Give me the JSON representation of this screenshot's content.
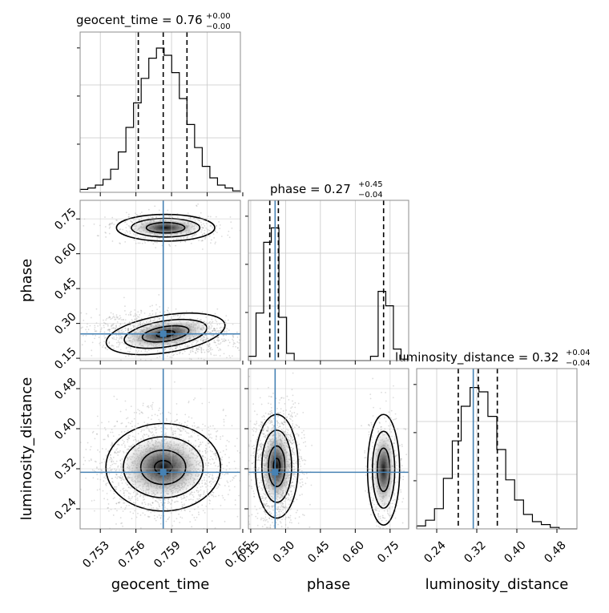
{
  "chart_data": {
    "type": "corner",
    "parameters": [
      {
        "name": "geocent_time",
        "range": [
          0.7513,
          0.7648
        ],
        "ticks": [
          "0.753",
          "0.756",
          "0.759",
          "0.762",
          "0.765"
        ],
        "tick_values": [
          0.753,
          0.756,
          0.759,
          0.762,
          0.765
        ],
        "truth": 0.7583,
        "quantiles": [
          0.7562,
          0.7583,
          0.7603
        ]
      },
      {
        "name": "phase",
        "range": [
          0.14,
          0.83
        ],
        "ticks": [
          "0.15",
          "0.30",
          "0.45",
          "0.60",
          "0.75"
        ],
        "tick_values": [
          0.15,
          0.3,
          0.45,
          0.6,
          0.75
        ],
        "truth": 0.255,
        "quantiles": [
          0.232,
          0.269,
          0.722
        ]
      },
      {
        "name": "luminosity_distance",
        "range": [
          0.2,
          0.52
        ],
        "ticks": [
          "0.24",
          "0.32",
          "0.40",
          "0.48"
        ],
        "tick_values": [
          0.24,
          0.32,
          0.4,
          0.48
        ],
        "truth": 0.313,
        "quantiles": [
          0.283,
          0.323,
          0.361
        ]
      }
    ],
    "titles": [
      {
        "main": "geocent_time = 0.76",
        "sup": "+0.00",
        "sub": "−0.00"
      },
      {
        "main": "phase = 0.27",
        "sup": "+0.45",
        "sub": "−0.04"
      },
      {
        "main": "luminosity_distance = 0.32",
        "sup": "+0.04",
        "sub": "−0.04"
      }
    ],
    "hist_heights": {
      "geocent_time": [
        0.02,
        0.03,
        0.05,
        0.09,
        0.16,
        0.28,
        0.45,
        0.62,
        0.79,
        0.93,
        1.0,
        0.95,
        0.83,
        0.65,
        0.47,
        0.31,
        0.18,
        0.1,
        0.05,
        0.03,
        0.01
      ],
      "phase": [
        0.03,
        0.33,
        0.82,
        0.92,
        0.3,
        0.05,
        0.0,
        0.0,
        0.0,
        0.0,
        0.0,
        0.0,
        0.0,
        0.0,
        0.0,
        0.0,
        0.03,
        0.48,
        0.38,
        0.08,
        0.01
      ],
      "luminosity_distance": [
        0.02,
        0.06,
        0.14,
        0.35,
        0.61,
        0.85,
        0.98,
        0.95,
        0.78,
        0.55,
        0.34,
        0.2,
        0.1,
        0.05,
        0.03,
        0.01,
        0.0,
        0.0
      ]
    }
  }
}
